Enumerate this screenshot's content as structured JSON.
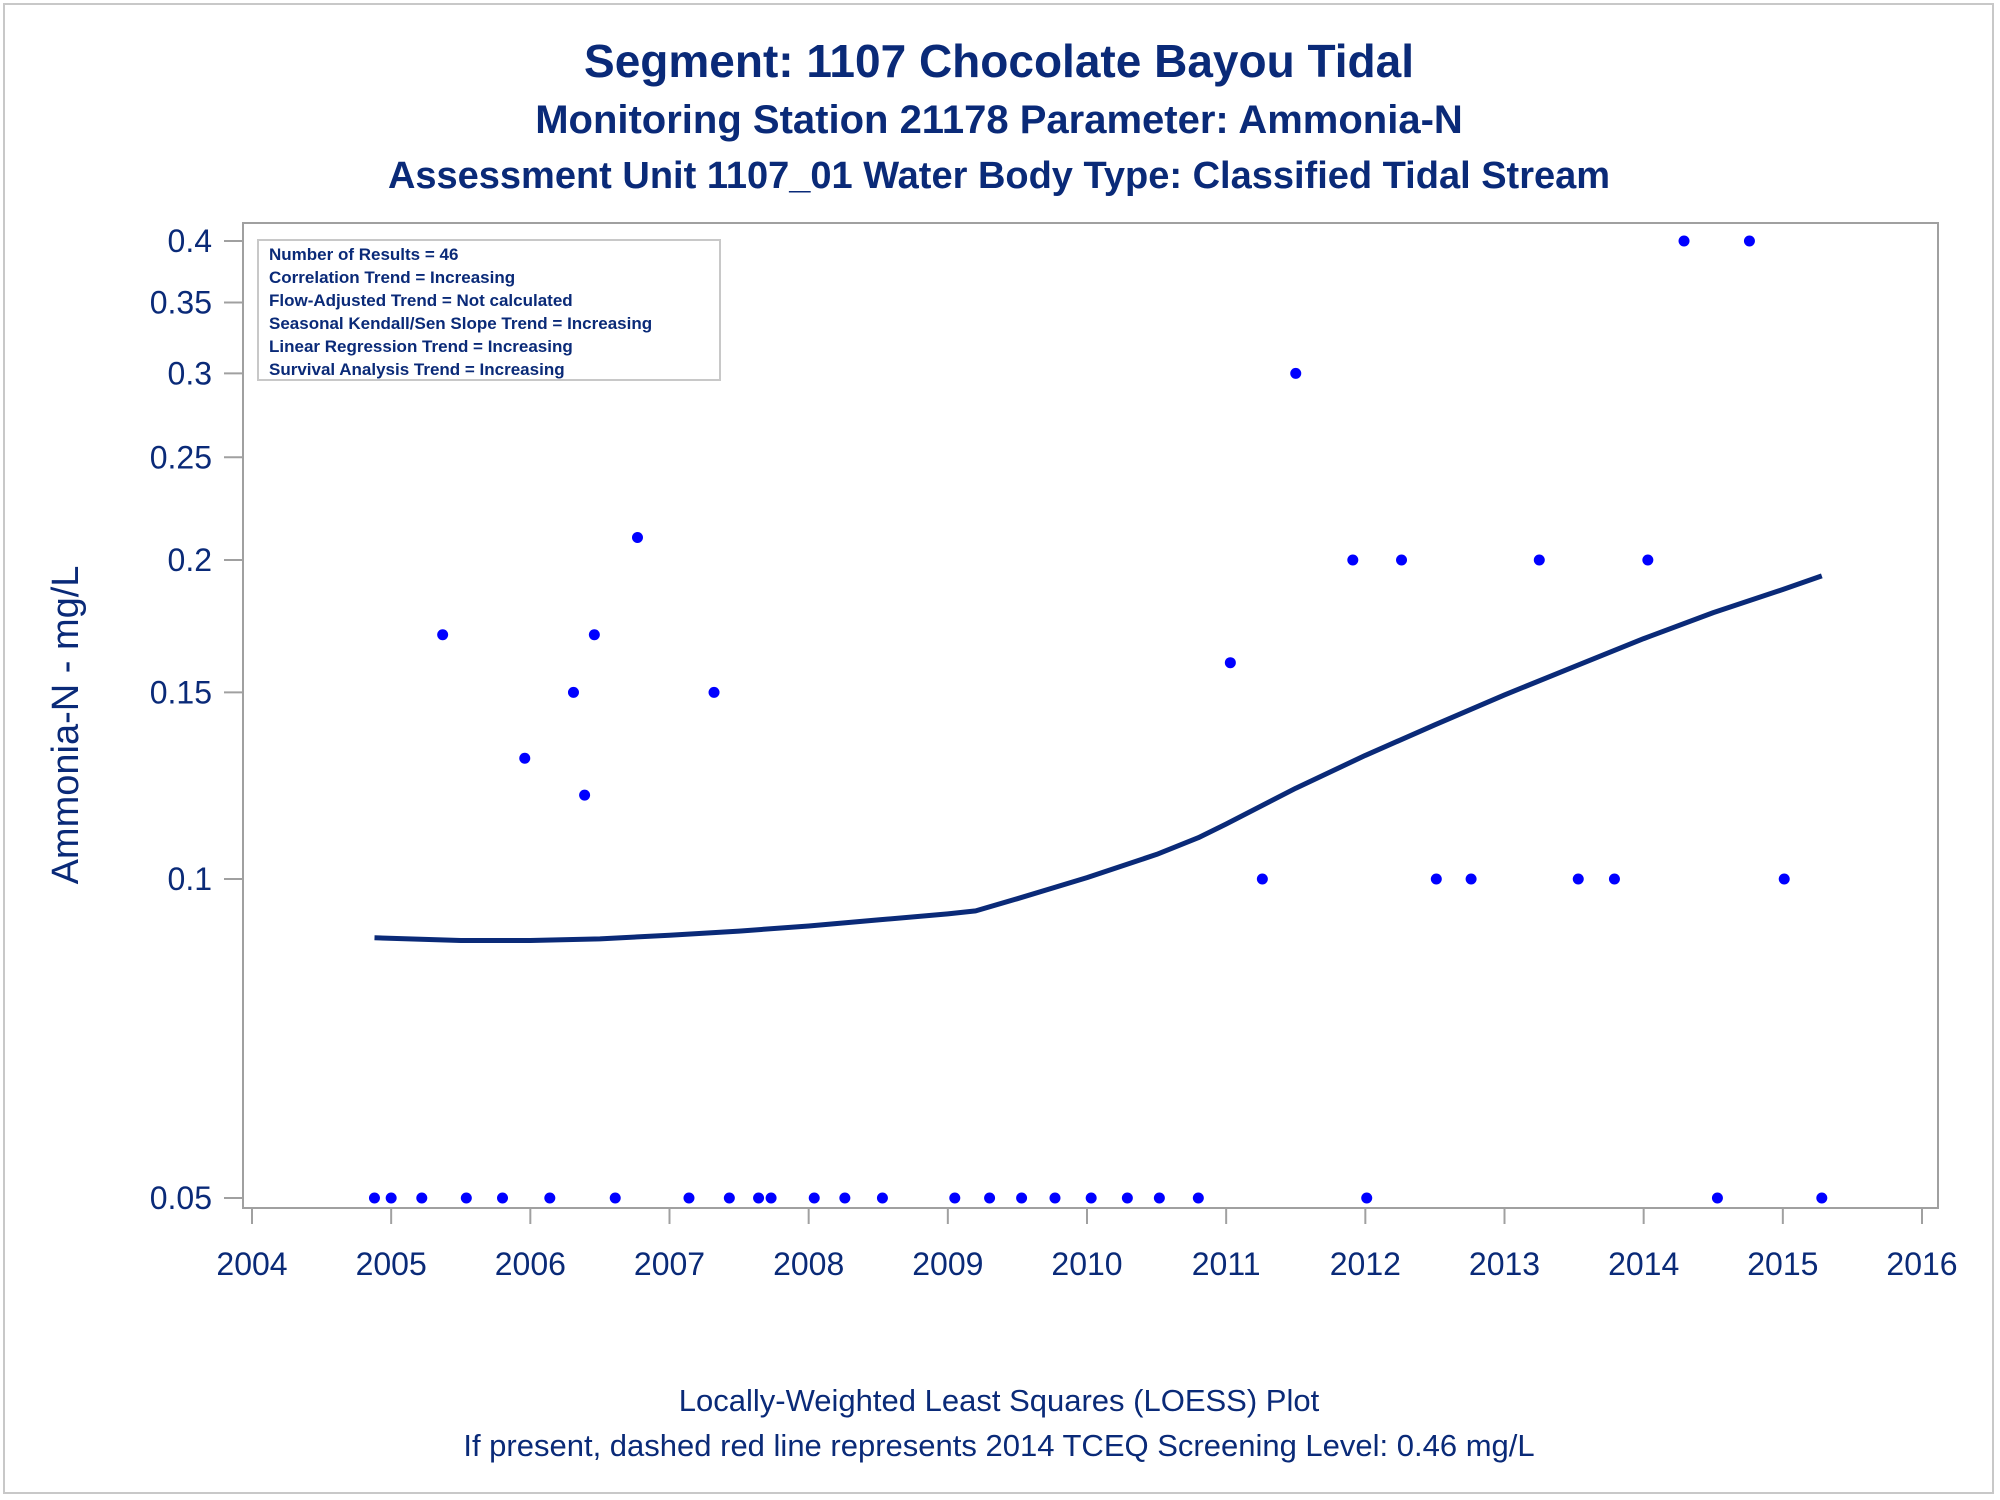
{
  "colors": {
    "text": "#0a2a78",
    "points": "#0000ff",
    "loess_line": "#0a2a78",
    "frame": "#a0a0a0"
  },
  "chart_data": {
    "type": "scatter",
    "title": "Segment: 1107  Chocolate Bayou Tidal",
    "subtitle": "Monitoring Station 21178 Parameter: Ammonia-N",
    "subtitle2": "Assessment Unit 1107_01   Water Body Type: Classified Tidal Stream",
    "xlabel": "",
    "ylabel": "Ammonia-N - mg/L",
    "footnotes": [
      "Locally-Weighted Least Squares (LOESS) Plot",
      "If present, dashed red line represents 2014 TCEQ Screening Level: 0.46 mg/L"
    ],
    "y_scale": "log",
    "xlim": [
      2004,
      2016
    ],
    "ylim": [
      0.05,
      0.4
    ],
    "x_ticks": [
      2004,
      2005,
      2006,
      2007,
      2008,
      2009,
      2010,
      2011,
      2012,
      2013,
      2014,
      2015,
      2016
    ],
    "y_ticks": [
      0.05,
      0.1,
      0.15,
      0.2,
      0.25,
      0.3,
      0.35,
      0.4
    ],
    "y_tick_labels": [
      "0.05",
      "0.1",
      "0.15",
      "0.2",
      "0.25",
      "0.3",
      "0.35",
      "0.4"
    ],
    "grid": false,
    "legend_placement": "top-left",
    "info_box": [
      "Number of Results = 46",
      "Correlation Trend = Increasing",
      "Flow-Adjusted Trend = Not calculated",
      "Seasonal Kendall/Sen Slope Trend = Increasing",
      "Linear Regression Trend = Increasing",
      "Survival Analysis Trend = Increasing"
    ],
    "points": [
      {
        "x": 2004.88,
        "y": 0.05
      },
      {
        "x": 2005.0,
        "y": 0.05
      },
      {
        "x": 2005.22,
        "y": 0.05
      },
      {
        "x": 2005.37,
        "y": 0.17
      },
      {
        "x": 2005.54,
        "y": 0.05
      },
      {
        "x": 2005.8,
        "y": 0.05
      },
      {
        "x": 2005.96,
        "y": 0.13
      },
      {
        "x": 2006.14,
        "y": 0.05
      },
      {
        "x": 2006.31,
        "y": 0.15
      },
      {
        "x": 2006.39,
        "y": 0.12
      },
      {
        "x": 2006.46,
        "y": 0.17
      },
      {
        "x": 2006.61,
        "y": 0.05
      },
      {
        "x": 2006.77,
        "y": 0.21
      },
      {
        "x": 2007.14,
        "y": 0.05
      },
      {
        "x": 2007.32,
        "y": 0.15
      },
      {
        "x": 2007.43,
        "y": 0.05
      },
      {
        "x": 2007.64,
        "y": 0.05
      },
      {
        "x": 2007.73,
        "y": 0.05
      },
      {
        "x": 2008.04,
        "y": 0.05
      },
      {
        "x": 2008.26,
        "y": 0.05
      },
      {
        "x": 2008.53,
        "y": 0.05
      },
      {
        "x": 2009.05,
        "y": 0.05
      },
      {
        "x": 2009.3,
        "y": 0.05
      },
      {
        "x": 2009.53,
        "y": 0.05
      },
      {
        "x": 2009.77,
        "y": 0.05
      },
      {
        "x": 2010.03,
        "y": 0.05
      },
      {
        "x": 2010.29,
        "y": 0.05
      },
      {
        "x": 2010.52,
        "y": 0.05
      },
      {
        "x": 2010.8,
        "y": 0.05
      },
      {
        "x": 2011.03,
        "y": 0.16
      },
      {
        "x": 2011.26,
        "y": 0.1
      },
      {
        "x": 2011.5,
        "y": 0.3
      },
      {
        "x": 2011.91,
        "y": 0.2
      },
      {
        "x": 2012.01,
        "y": 0.05
      },
      {
        "x": 2012.26,
        "y": 0.2
      },
      {
        "x": 2012.51,
        "y": 0.1
      },
      {
        "x": 2012.76,
        "y": 0.1
      },
      {
        "x": 2013.25,
        "y": 0.2
      },
      {
        "x": 2013.53,
        "y": 0.1
      },
      {
        "x": 2013.79,
        "y": 0.1
      },
      {
        "x": 2014.03,
        "y": 0.2
      },
      {
        "x": 2014.29,
        "y": 0.4
      },
      {
        "x": 2014.53,
        "y": 0.05
      },
      {
        "x": 2014.76,
        "y": 0.4
      },
      {
        "x": 2015.01,
        "y": 0.1
      },
      {
        "x": 2015.28,
        "y": 0.05
      }
    ],
    "loess_curve": [
      {
        "x": 2004.88,
        "y": 0.088
      },
      {
        "x": 2005.5,
        "y": 0.0875
      },
      {
        "x": 2006.0,
        "y": 0.0875
      },
      {
        "x": 2006.5,
        "y": 0.0878
      },
      {
        "x": 2007.0,
        "y": 0.0885
      },
      {
        "x": 2007.5,
        "y": 0.0893
      },
      {
        "x": 2008.0,
        "y": 0.0903
      },
      {
        "x": 2008.5,
        "y": 0.0915
      },
      {
        "x": 2009.0,
        "y": 0.0927
      },
      {
        "x": 2009.2,
        "y": 0.0933
      },
      {
        "x": 2009.5,
        "y": 0.0958
      },
      {
        "x": 2010.0,
        "y": 0.1003
      },
      {
        "x": 2010.5,
        "y": 0.1055
      },
      {
        "x": 2010.8,
        "y": 0.1094
      },
      {
        "x": 2011.0,
        "y": 0.1127
      },
      {
        "x": 2011.5,
        "y": 0.1218
      },
      {
        "x": 2012.0,
        "y": 0.1308
      },
      {
        "x": 2012.5,
        "y": 0.1398
      },
      {
        "x": 2013.0,
        "y": 0.1492
      },
      {
        "x": 2013.5,
        "y": 0.1586
      },
      {
        "x": 2014.0,
        "y": 0.1686
      },
      {
        "x": 2014.5,
        "y": 0.1784
      },
      {
        "x": 2015.0,
        "y": 0.1876
      },
      {
        "x": 2015.28,
        "y": 0.1932
      }
    ]
  }
}
